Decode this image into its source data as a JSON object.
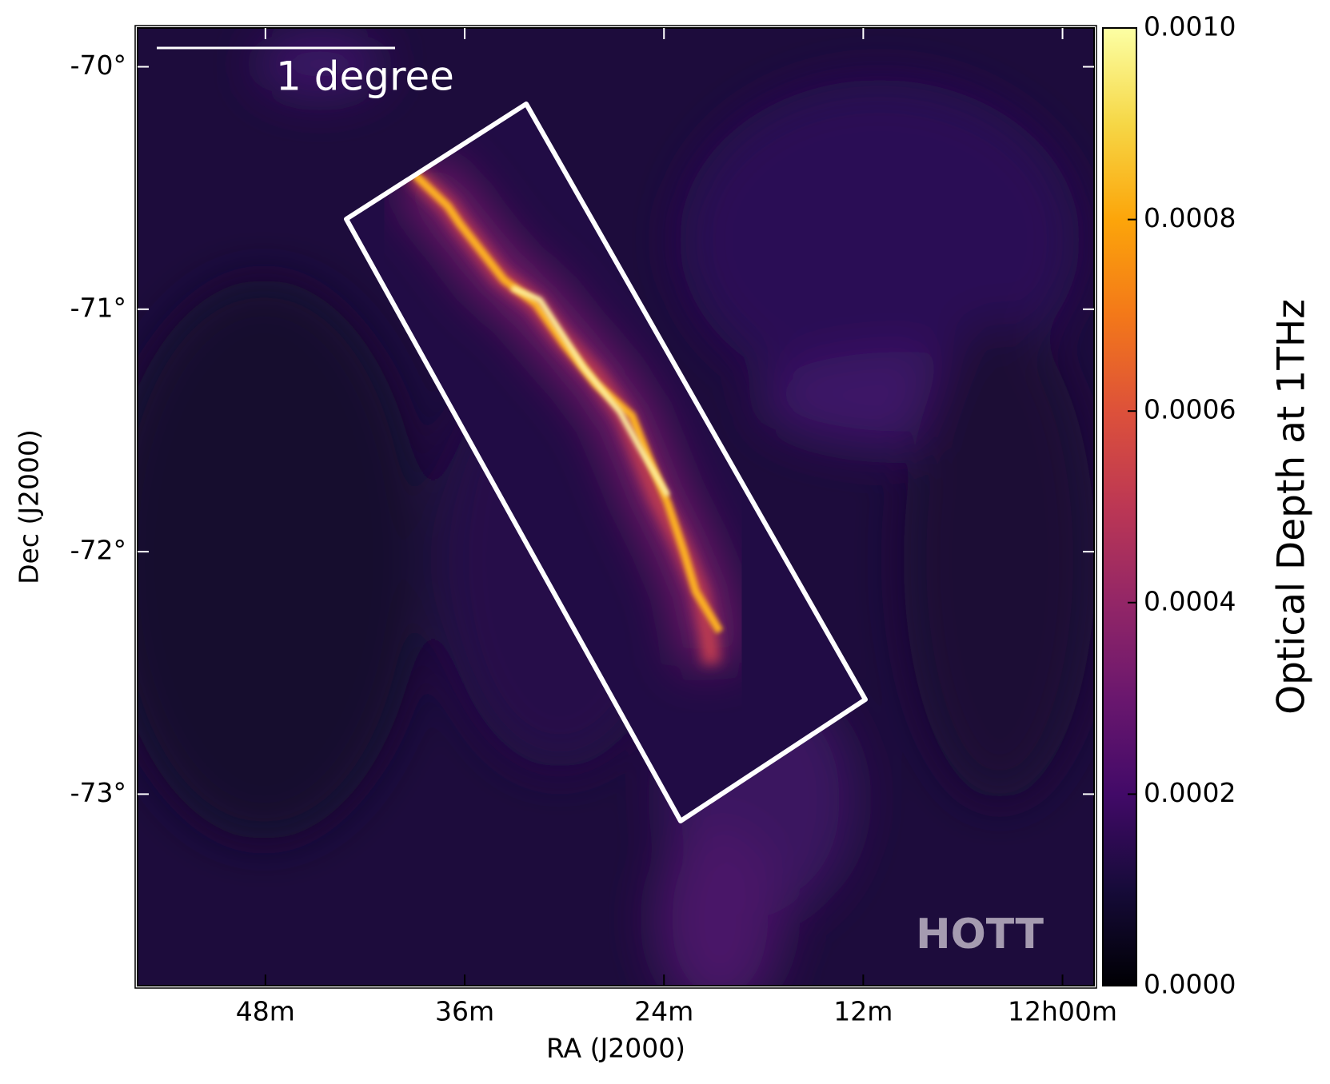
{
  "chart_data": {
    "type": "image",
    "xlabel": "RA (J2000)",
    "ylabel": "Dec (J2000)",
    "xlim": [
      55.7,
      -1.9
    ],
    "ylim": [
      -73.79,
      -69.84
    ],
    "xticks": [
      {
        "value": 48,
        "label": "48m"
      },
      {
        "value": 36,
        "label": "36m"
      },
      {
        "value": 24,
        "label": "24m"
      },
      {
        "value": 12,
        "label": "12m"
      },
      {
        "value": 0,
        "label": "12h00m"
      }
    ],
    "yticks": [
      {
        "value": -70,
        "label": "-70°"
      },
      {
        "value": -71,
        "label": "-71°"
      },
      {
        "value": -72,
        "label": "-72°"
      },
      {
        "value": -73,
        "label": "-73°"
      }
    ],
    "colorbar": {
      "label": "Optical Depth at 1THz",
      "lim": [
        0,
        0.001
      ],
      "ticks": [
        {
          "value": 0,
          "label": "0.0000"
        },
        {
          "value": 0.0002,
          "label": "0.0002"
        },
        {
          "value": 0.0004,
          "label": "0.0004"
        },
        {
          "value": 0.0006,
          "label": "0.0006"
        },
        {
          "value": 0.0008,
          "label": "0.0008"
        },
        {
          "value": 0.001,
          "label": "0.0010"
        }
      ]
    },
    "scale_bar_label": "1 degree",
    "watermark": "HOTT"
  }
}
